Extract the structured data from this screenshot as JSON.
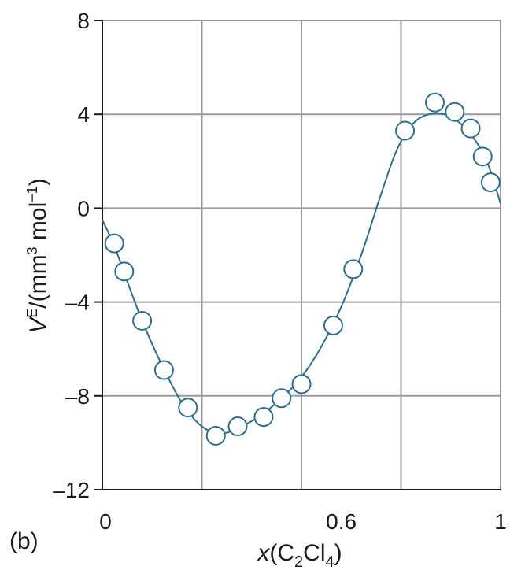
{
  "chart_data": {
    "type": "scatter",
    "panel_label": "(b)",
    "xlabel": {
      "main": "x",
      "open": "(C",
      "sub1": "2",
      "mid": "Cl",
      "sub2": "4",
      "close": ")"
    },
    "ylabel": {
      "main": "V",
      "sup1": "E",
      "mid": "/(mm",
      "sup2": "3",
      "unit": " mol",
      "sup3": "−1",
      "close": ")"
    },
    "xlim": [
      0,
      1
    ],
    "ylim": [
      -12,
      8
    ],
    "xticks": [
      {
        "value": 0,
        "label": "0"
      },
      {
        "value": 0.6,
        "label": "0.6"
      },
      {
        "value": 1,
        "label": "1"
      }
    ],
    "yticks": [
      {
        "value": 8,
        "label": "8"
      },
      {
        "value": 4,
        "label": "4"
      },
      {
        "value": 0,
        "label": "0"
      },
      {
        "value": -4,
        "label": "–4"
      },
      {
        "value": -8,
        "label": "–8"
      },
      {
        "value": -12,
        "label": "–12"
      }
    ],
    "grid_x": [
      0,
      0.25,
      0.5,
      0.75,
      1
    ],
    "grid_y": [
      -12,
      -8,
      -4,
      0,
      4,
      8
    ],
    "grid": true,
    "marker": "open-circle",
    "points": [
      {
        "x": 0.03,
        "y": -1.5
      },
      {
        "x": 0.055,
        "y": -2.7
      },
      {
        "x": 0.1,
        "y": -4.8
      },
      {
        "x": 0.155,
        "y": -6.9
      },
      {
        "x": 0.215,
        "y": -8.5
      },
      {
        "x": 0.285,
        "y": -9.7
      },
      {
        "x": 0.34,
        "y": -9.3
      },
      {
        "x": 0.405,
        "y": -8.9
      },
      {
        "x": 0.45,
        "y": -8.1
      },
      {
        "x": 0.5,
        "y": -7.5
      },
      {
        "x": 0.58,
        "y": -5.0
      },
      {
        "x": 0.63,
        "y": -2.6
      },
      {
        "x": 0.76,
        "y": 3.3
      },
      {
        "x": 0.835,
        "y": 4.5
      },
      {
        "x": 0.885,
        "y": 4.1
      },
      {
        "x": 0.925,
        "y": 3.4
      },
      {
        "x": 0.955,
        "y": 2.2
      },
      {
        "x": 0.975,
        "y": 1.1
      }
    ],
    "fit_curve": [
      {
        "x": 0.0,
        "y": -0.5
      },
      {
        "x": 0.03,
        "y": -1.6
      },
      {
        "x": 0.06,
        "y": -3.0
      },
      {
        "x": 0.1,
        "y": -4.8
      },
      {
        "x": 0.15,
        "y": -6.7
      },
      {
        "x": 0.2,
        "y": -8.3
      },
      {
        "x": 0.25,
        "y": -9.3
      },
      {
        "x": 0.3,
        "y": -9.6
      },
      {
        "x": 0.35,
        "y": -9.3
      },
      {
        "x": 0.4,
        "y": -8.8
      },
      {
        "x": 0.45,
        "y": -8.1
      },
      {
        "x": 0.5,
        "y": -7.2
      },
      {
        "x": 0.55,
        "y": -5.9
      },
      {
        "x": 0.6,
        "y": -4.2
      },
      {
        "x": 0.65,
        "y": -2.0
      },
      {
        "x": 0.7,
        "y": 0.6
      },
      {
        "x": 0.74,
        "y": 2.5
      },
      {
        "x": 0.78,
        "y": 3.6
      },
      {
        "x": 0.82,
        "y": 4.0
      },
      {
        "x": 0.86,
        "y": 4.0
      },
      {
        "x": 0.9,
        "y": 3.6
      },
      {
        "x": 0.94,
        "y": 2.8
      },
      {
        "x": 0.97,
        "y": 1.8
      },
      {
        "x": 1.0,
        "y": 0.2
      }
    ],
    "colors": {
      "series": "#2e6e8a",
      "marker_fill": "#ffffff",
      "grid": "#9a9a9a",
      "axis": "#1a1a1a",
      "text": "#1a1a1a"
    }
  }
}
